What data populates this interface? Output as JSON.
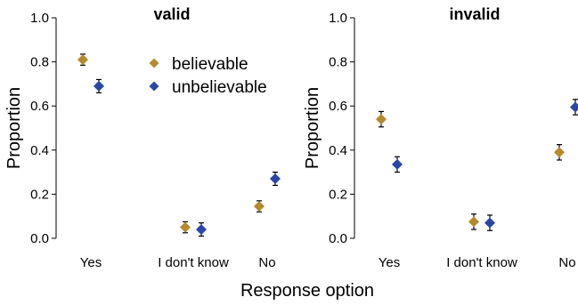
{
  "chart_data": [
    {
      "type": "scatter",
      "title": "valid",
      "categories": [
        "Yes",
        "I don't know",
        "No"
      ],
      "ylabel": "Proportion",
      "ylim": [
        0,
        1.0
      ],
      "yticks": [
        "0.0",
        "0.2",
        "0.4",
        "0.6",
        "0.8",
        "1.0"
      ],
      "series": [
        {
          "name": "believable",
          "color": "#B58A2E",
          "values": [
            0.81,
            0.05,
            0.145
          ],
          "errors": [
            0.025,
            0.025,
            0.025
          ]
        },
        {
          "name": "unbelievable",
          "color": "#2A46A8",
          "values": [
            0.69,
            0.04,
            0.27
          ],
          "errors": [
            0.03,
            0.03,
            0.03
          ]
        }
      ],
      "legend": "top-right"
    },
    {
      "type": "scatter",
      "title": "invalid",
      "categories": [
        "Yes",
        "I don't know",
        "No"
      ],
      "ylabel": "Proportion",
      "ylim": [
        0,
        1.0
      ],
      "yticks": [
        "0.0",
        "0.2",
        "0.4",
        "0.6",
        "0.8",
        "1.0"
      ],
      "series": [
        {
          "name": "believable",
          "color": "#B58A2E",
          "values": [
            0.54,
            0.075,
            0.39
          ],
          "errors": [
            0.035,
            0.035,
            0.035
          ]
        },
        {
          "name": "unbelievable",
          "color": "#2A46A8",
          "values": [
            0.335,
            0.07,
            0.595
          ],
          "errors": [
            0.035,
            0.035,
            0.035
          ]
        }
      ]
    }
  ],
  "xlabel": "Response option"
}
